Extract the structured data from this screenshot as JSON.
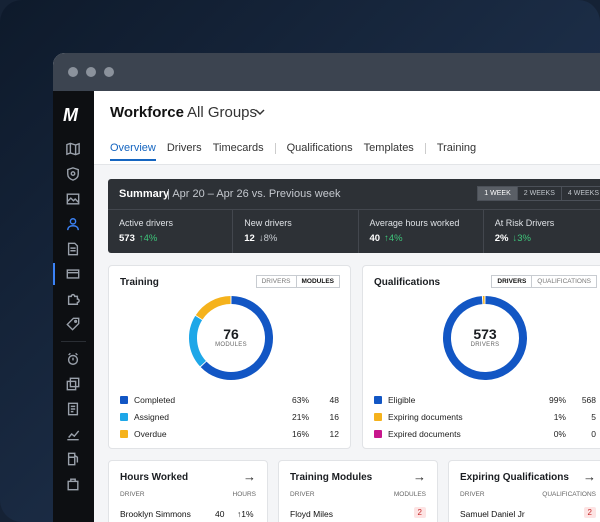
{
  "app": {
    "logo": "M"
  },
  "header": {
    "title": "Workforce",
    "group": "All Groups",
    "tabs": [
      {
        "label": "Overview"
      },
      {
        "label": "Drivers"
      },
      {
        "label": "Timecards"
      },
      {
        "label": "Qualifications"
      },
      {
        "label": "Templates"
      },
      {
        "label": "Training"
      }
    ]
  },
  "summary": {
    "title": "Summary",
    "range": "Apr 20 – Apr 26 vs. Previous week",
    "periods": [
      "1 WEEK",
      "2 WEEKS",
      "4 WEEKS"
    ],
    "metrics": [
      {
        "label": "Active drivers",
        "value": "573",
        "delta": "↑4%"
      },
      {
        "label": "New drivers",
        "value": "12",
        "delta": "↓8%"
      },
      {
        "label": "Average hours worked",
        "value": "40",
        "delta": "↑4%"
      },
      {
        "label": "At Risk Drivers",
        "value": "2%",
        "delta": "↓3%"
      }
    ]
  },
  "training": {
    "title": "Training",
    "toggle": [
      "DRIVERS",
      "MODULES"
    ],
    "center_value": "76",
    "center_label": "MODULES",
    "legend": [
      {
        "name": "Completed",
        "pct": "63%",
        "count": "48",
        "color": "#1256c4"
      },
      {
        "name": "Assigned",
        "pct": "21%",
        "count": "16",
        "color": "#1ea7e8"
      },
      {
        "name": "Overdue",
        "pct": "16%",
        "count": "12",
        "color": "#f5b21c"
      }
    ]
  },
  "qualifications": {
    "title": "Qualifications",
    "toggle": [
      "DRIVERS",
      "QUALIFICATIONS"
    ],
    "center_value": "573",
    "center_label": "DRIVERS",
    "legend": [
      {
        "name": "Eligible",
        "pct": "99%",
        "count": "568",
        "color": "#1256c4"
      },
      {
        "name": "Expiring documents",
        "pct": "1%",
        "count": "5",
        "color": "#f5b21c"
      },
      {
        "name": "Expired documents",
        "pct": "0%",
        "count": "0",
        "color": "#c8168c"
      }
    ]
  },
  "hours": {
    "title": "Hours Worked",
    "col1": "DRIVER",
    "col2": "HOURS",
    "row": {
      "name": "Brooklyn Simmons",
      "value": "40",
      "delta": "↑1%"
    }
  },
  "modules": {
    "title": "Training Modules",
    "col1": "DRIVER",
    "col2": "MODULES",
    "row": {
      "name": "Floyd Miles",
      "value": "2"
    }
  },
  "expiring": {
    "title": "Expiring Qualifications",
    "col1": "DRIVER",
    "col2": "QUALIFICATIONS",
    "row": {
      "name": "Samuel Daniel Jr",
      "value": "2"
    }
  }
}
